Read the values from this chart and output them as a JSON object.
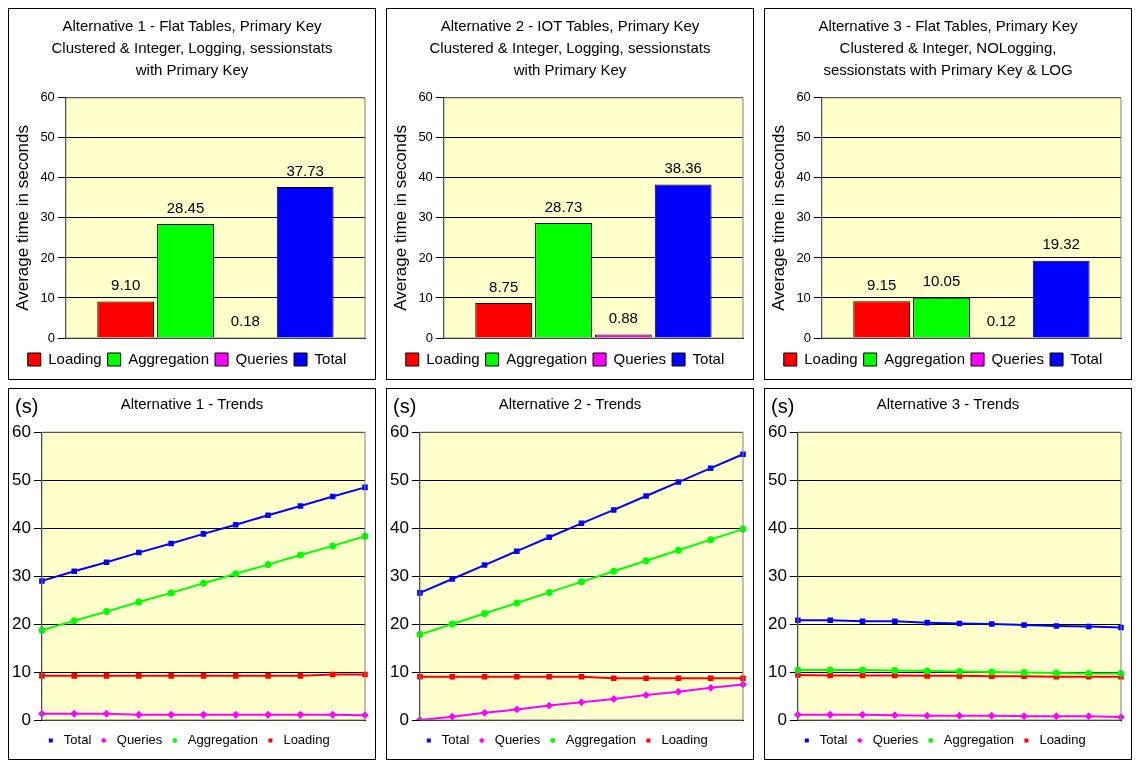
{
  "chart_data": [
    {
      "type": "bar",
      "title": "Alternative 1 - Flat Tables, Primary Key Clustered & Integer, Logging, sessionstats with Primary Key",
      "ylabel": "Average time in seconds",
      "categories": [
        null
      ],
      "ylim": [
        0,
        60
      ],
      "yticks": [
        0,
        10,
        20,
        30,
        40,
        50,
        60
      ],
      "grid": "y",
      "legend": "bottom",
      "series": [
        {
          "name": "Loading",
          "color": "#ff0000",
          "values": [
            9.1
          ],
          "value_labels": [
            "9.10"
          ]
        },
        {
          "name": "Aggregation",
          "color": "#00ff00",
          "values": [
            28.45
          ],
          "value_labels": [
            "28.45"
          ]
        },
        {
          "name": "Queries",
          "color": "#ff00ff",
          "values": [
            0.18
          ],
          "value_labels": [
            "0.18"
          ]
        },
        {
          "name": "Total",
          "color": "#0000ff",
          "values": [
            37.73
          ],
          "value_labels": [
            "37.73"
          ]
        }
      ]
    },
    {
      "type": "bar",
      "title": "Alternative 2 - IOT Tables, Primary Key Clustered & Integer, Logging, sessionstats with Primary Key",
      "ylabel": "Average time in seconds",
      "categories": [
        null
      ],
      "ylim": [
        0,
        60
      ],
      "yticks": [
        0,
        10,
        20,
        30,
        40,
        50,
        60
      ],
      "grid": "y",
      "legend": "bottom",
      "series": [
        {
          "name": "Loading",
          "color": "#ff0000",
          "values": [
            8.75
          ],
          "value_labels": [
            "8.75"
          ]
        },
        {
          "name": "Aggregation",
          "color": "#00ff00",
          "values": [
            28.73
          ],
          "value_labels": [
            "28.73"
          ]
        },
        {
          "name": "Queries",
          "color": "#ff00ff",
          "values": [
            0.88
          ],
          "value_labels": [
            "0.88"
          ]
        },
        {
          "name": "Total",
          "color": "#0000ff",
          "values": [
            38.36
          ],
          "value_labels": [
            "38.36"
          ]
        }
      ]
    },
    {
      "type": "bar",
      "title": "Alternative 3 - Flat Tables, Primary Key Clustered & Integer, NOLogging, sessionstats with Primary Key & LOG",
      "ylabel": "Average time in seconds",
      "categories": [
        null
      ],
      "ylim": [
        0,
        60
      ],
      "yticks": [
        0,
        10,
        20,
        30,
        40,
        50,
        60
      ],
      "grid": "y",
      "legend": "bottom",
      "series": [
        {
          "name": "Loading",
          "color": "#ff0000",
          "values": [
            9.15
          ],
          "value_labels": [
            "9.15"
          ]
        },
        {
          "name": "Aggregation",
          "color": "#00ff00",
          "values": [
            10.05
          ],
          "value_labels": [
            "10.05"
          ]
        },
        {
          "name": "Queries",
          "color": "#ff00ff",
          "values": [
            0.12
          ],
          "value_labels": [
            "0.12"
          ]
        },
        {
          "name": "Total",
          "color": "#0000ff",
          "values": [
            19.32
          ],
          "value_labels": [
            "19.32"
          ]
        }
      ]
    },
    {
      "type": "line",
      "title": "Alternative 1 - Trends",
      "ylabel": "(s)",
      "categories": [
        null,
        null,
        null,
        null,
        null,
        null,
        null,
        null,
        null,
        null,
        null
      ],
      "ylim": [
        0,
        60
      ],
      "yticks": [
        0,
        10,
        20,
        30,
        40,
        50,
        60
      ],
      "grid": "y",
      "legend": "bottom",
      "series": [
        {
          "name": "Loading",
          "color": "#ff0000",
          "marker": "square",
          "values": [
            9.2,
            9.2,
            9.2,
            9.2,
            9.2,
            9.2,
            9.2,
            9.2,
            9.2,
            9.5,
            9.5
          ]
        },
        {
          "name": "Aggregation",
          "color": "#00ff00",
          "marker": "circle",
          "values": [
            18.7,
            20.7,
            22.6,
            24.6,
            26.5,
            28.5,
            30.5,
            32.4,
            34.4,
            36.3,
            38.3
          ]
        },
        {
          "name": "Queries",
          "color": "#ff00ff",
          "marker": "diamond",
          "values": [
            1.3,
            1.3,
            1.3,
            1.1,
            1.1,
            1.1,
            1.1,
            1.1,
            1.1,
            1.1,
            1.0
          ]
        },
        {
          "name": "Total",
          "color": "#0000ff",
          "marker": "square",
          "values": [
            29,
            31,
            32.9,
            34.9,
            36.8,
            38.8,
            40.7,
            42.7,
            44.6,
            46.6,
            48.5
          ]
        }
      ]
    },
    {
      "type": "line",
      "title": "Alternative 2 - Trends",
      "ylabel": "(s)",
      "categories": [
        null,
        null,
        null,
        null,
        null,
        null,
        null,
        null,
        null,
        null,
        null
      ],
      "ylim": [
        0,
        60
      ],
      "yticks": [
        0,
        10,
        20,
        30,
        40,
        50,
        60
      ],
      "grid": "y",
      "legend": "bottom",
      "series": [
        {
          "name": "Loading",
          "color": "#ff0000",
          "marker": "square",
          "values": [
            9.0,
            9.0,
            9.0,
            9.0,
            9.0,
            9.0,
            8.7,
            8.7,
            8.7,
            8.7,
            8.7
          ]
        },
        {
          "name": "Aggregation",
          "color": "#00ff00",
          "marker": "circle",
          "values": [
            17.8,
            20,
            22.2,
            24.4,
            26.6,
            28.8,
            31,
            33.2,
            35.4,
            37.6,
            39.8
          ]
        },
        {
          "name": "Queries",
          "color": "#ff00ff",
          "marker": "diamond",
          "values": [
            0,
            0.7,
            1.5,
            2.2,
            3,
            3.7,
            4.4,
            5.2,
            5.9,
            6.7,
            7.4
          ]
        },
        {
          "name": "Total",
          "color": "#0000ff",
          "marker": "square",
          "values": [
            26.5,
            29.4,
            32.3,
            35.2,
            38.1,
            41.0,
            43.8,
            46.7,
            49.6,
            52.5,
            55.4
          ]
        }
      ]
    },
    {
      "type": "line",
      "title": "Alternative 3 - Trends",
      "ylabel": "(s)",
      "categories": [
        null,
        null,
        null,
        null,
        null,
        null,
        null,
        null,
        null,
        null,
        null
      ],
      "ylim": [
        0,
        60
      ],
      "yticks": [
        0,
        10,
        20,
        30,
        40,
        50,
        60
      ],
      "grid": "y",
      "legend": "bottom",
      "series": [
        {
          "name": "Loading",
          "color": "#ff0000",
          "marker": "square",
          "values": [
            9.4,
            9.3,
            9.3,
            9.3,
            9.2,
            9.2,
            9.1,
            9.1,
            9.0,
            9.0,
            9.0
          ]
        },
        {
          "name": "Aggregation",
          "color": "#00ff00",
          "marker": "circle",
          "values": [
            10.4,
            10.4,
            10.4,
            10.3,
            10.2,
            10.1,
            10.0,
            9.9,
            9.8,
            9.7,
            9.7
          ]
        },
        {
          "name": "Queries",
          "color": "#ff00ff",
          "marker": "diamond",
          "values": [
            1.1,
            1.1,
            1.1,
            1.0,
            0.9,
            0.9,
            0.9,
            0.8,
            0.8,
            0.8,
            0.6
          ]
        },
        {
          "name": "Total",
          "color": "#0000ff",
          "marker": "square",
          "values": [
            20.8,
            20.8,
            20.6,
            20.6,
            20.3,
            20.1,
            20.0,
            19.8,
            19.6,
            19.5,
            19.3
          ]
        }
      ]
    }
  ]
}
